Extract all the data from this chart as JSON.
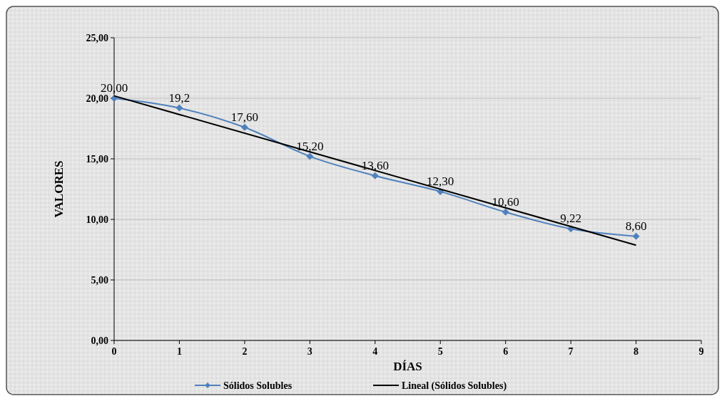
{
  "chart_data": {
    "type": "line",
    "xlabel": "DÍAS",
    "ylabel": "VALORES",
    "xlim": [
      0,
      9
    ],
    "xticks": [
      0,
      1,
      2,
      3,
      4,
      5,
      6,
      7,
      8,
      9
    ],
    "ylim": [
      0,
      25
    ],
    "yticks": [
      {
        "value": 0,
        "label": "0,00"
      },
      {
        "value": 5,
        "label": "5,00"
      },
      {
        "value": 10,
        "label": "10,00"
      },
      {
        "value": 15,
        "label": "15,00"
      },
      {
        "value": 20,
        "label": "20,00"
      },
      {
        "value": 25,
        "label": "25,00"
      }
    ],
    "grid": "y",
    "legend": "bottom",
    "marker": "diamond",
    "series": [
      {
        "name": "Sólidos Solubles",
        "color": "#4f81bd",
        "x": [
          0,
          1,
          2,
          3,
          4,
          5,
          6,
          7,
          8
        ],
        "values": [
          20.0,
          19.2,
          17.6,
          15.2,
          13.6,
          12.3,
          10.6,
          9.22,
          8.6
        ],
        "value_labels": [
          "20,00",
          "19,2",
          "17,60",
          "15,20",
          "13,60",
          "12,30",
          "10,60",
          "9,22",
          "8,60"
        ]
      },
      {
        "name": "Lineal (Sólidos Solubles)",
        "type": "line",
        "color": "#000000",
        "marker": "none",
        "x": [
          0,
          8
        ],
        "values": [
          20.2,
          7.87
        ]
      }
    ]
  }
}
